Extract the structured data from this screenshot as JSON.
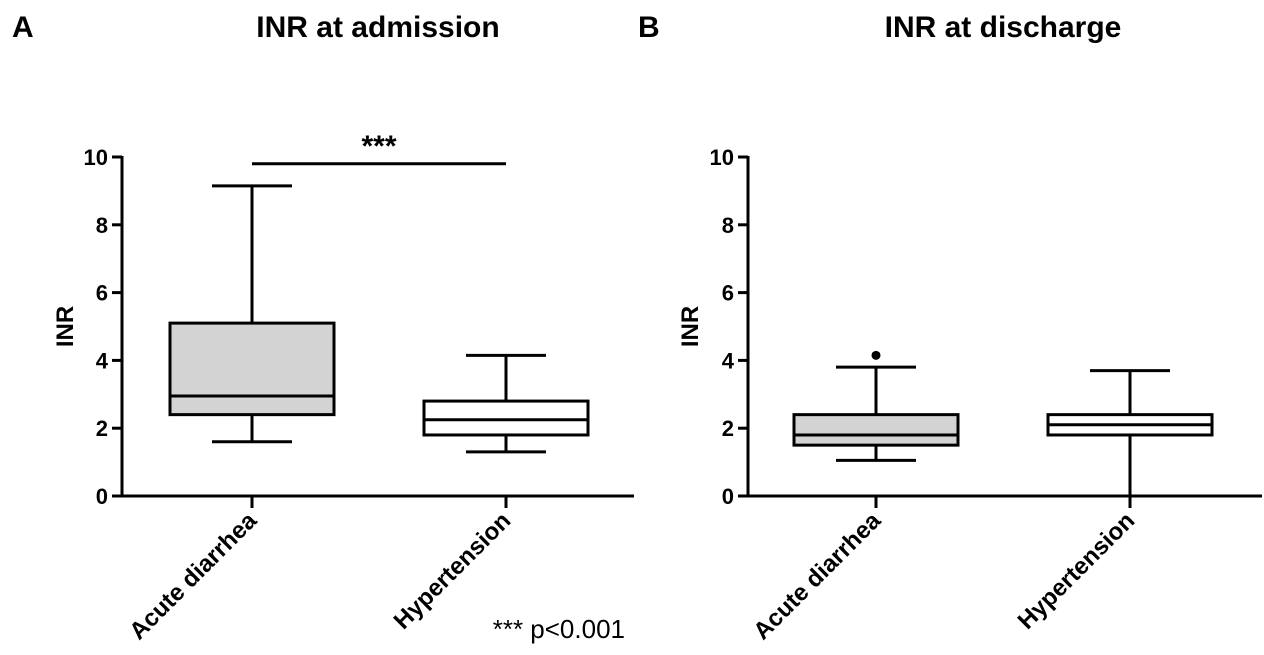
{
  "footnote": "*** p<0.001",
  "colors": {
    "filled_box": "#d3d3d3",
    "open_box": "#ffffff",
    "line": "#000000"
  },
  "chart_data": [
    {
      "type": "box",
      "panel_label": "A",
      "title": "INR at admission",
      "xlabel": "",
      "ylabel": "INR",
      "ylim": [
        0,
        10
      ],
      "yticks": [
        "0",
        "2",
        "4",
        "6",
        "8",
        "10"
      ],
      "grid": false,
      "categories": [
        "Acute diarrhea",
        "Hypertension"
      ],
      "boxes": [
        {
          "name": "Acute diarrhea",
          "fill": "#d3d3d3",
          "min": 1.6,
          "q1": 2.4,
          "median": 2.95,
          "q3": 5.1,
          "max": 9.15,
          "outliers": []
        },
        {
          "name": "Hypertension",
          "fill": "#ffffff",
          "min": 1.3,
          "q1": 1.8,
          "median": 2.25,
          "q3": 2.8,
          "max": 4.15,
          "outliers": []
        }
      ],
      "significance": {
        "label": "***",
        "between": [
          "Acute diarrhea",
          "Hypertension"
        ],
        "y": 9.8
      }
    },
    {
      "type": "box",
      "panel_label": "B",
      "title": "INR at discharge",
      "xlabel": "",
      "ylabel": "INR",
      "ylim": [
        0,
        10
      ],
      "yticks": [
        "0",
        "2",
        "4",
        "6",
        "8",
        "10"
      ],
      "grid": false,
      "categories": [
        "Acute diarrhea",
        "Hypertension"
      ],
      "boxes": [
        {
          "name": "Acute diarrhea",
          "fill": "#d3d3d3",
          "min": 1.05,
          "q1": 1.5,
          "median": 1.8,
          "q3": 2.4,
          "max": 3.8,
          "outliers": [
            4.15
          ]
        },
        {
          "name": "Hypertension",
          "fill": "#ffffff",
          "min": 0.0,
          "q1": 1.8,
          "median": 2.1,
          "q3": 2.4,
          "max": 3.7,
          "outliers": []
        }
      ]
    }
  ]
}
